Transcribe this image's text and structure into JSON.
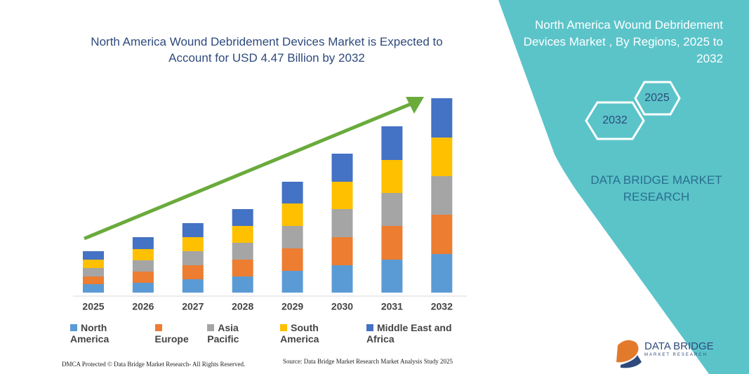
{
  "chart_data": {
    "type": "bar",
    "stacked": true,
    "title": "North America Wound Debridement Devices Market is Expected to Account for USD 4.47 Billion by 2032",
    "categories": [
      "2025",
      "2026",
      "2027",
      "2028",
      "2029",
      "2030",
      "2031",
      "2032"
    ],
    "series": [
      {
        "name": "North America",
        "color": "#5b9bd5",
        "values": [
          12,
          14,
          19,
          23,
          31,
          39,
          47,
          55
        ]
      },
      {
        "name": "Europe",
        "color": "#ed7d31",
        "values": [
          11,
          16,
          20,
          24,
          32,
          40,
          48,
          56
        ]
      },
      {
        "name": "Asia Pacific",
        "color": "#a5a5a5",
        "values": [
          12,
          16,
          20,
          24,
          32,
          40,
          47,
          55
        ]
      },
      {
        "name": "South America",
        "color": "#ffc000",
        "values": [
          12,
          16,
          20,
          24,
          32,
          39,
          47,
          55
        ]
      },
      {
        "name": "Middle East and Africa",
        "color": "#4472c4",
        "values": [
          12,
          17,
          20,
          24,
          31,
          40,
          48,
          56
        ]
      }
    ]
  },
  "panel": {
    "title": "North America Wound Debridement Devices Market , By Regions, 2025 to 2032",
    "hexagons": [
      "2025",
      "2032"
    ],
    "brand": "DATA BRIDGE MARKET RESEARCH"
  },
  "footer": {
    "left": "DMCA Protected © Data Bridge Market Research- All Rights Reserved.",
    "source": "Source: Data Bridge Market Research Market Analysis Study 2025"
  },
  "logo": {
    "name": "DATA BRIDGE",
    "tagline": "MARKET RESEARCH"
  }
}
